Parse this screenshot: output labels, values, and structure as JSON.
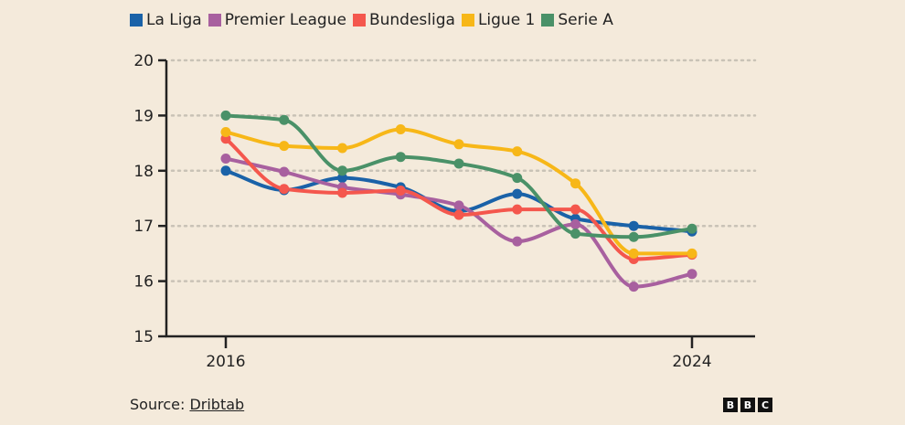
{
  "chart_data": {
    "type": "line",
    "title": "",
    "xlabel": "",
    "ylabel": "",
    "x": [
      2016,
      2017,
      2018,
      2019,
      2020,
      2021,
      2022,
      2023,
      2024
    ],
    "x_tick_labels": [
      "2016",
      "2024"
    ],
    "x_tick_values": [
      2016,
      2024
    ],
    "xlim": [
      2015,
      2025.1
    ],
    "ylim": [
      15,
      20
    ],
    "y_ticks": [
      15,
      16,
      17,
      18,
      19,
      20
    ],
    "grid": "horizontal dotted",
    "legend": "top-left",
    "series": [
      {
        "name": "La Liga",
        "color": "#1a62a8",
        "values": [
          18.0,
          17.65,
          17.87,
          17.7,
          17.27,
          17.58,
          17.13,
          17.0,
          16.9
        ]
      },
      {
        "name": "Premier League",
        "color": "#a8609f",
        "values": [
          18.22,
          17.98,
          17.7,
          17.57,
          17.37,
          16.72,
          17.03,
          15.9,
          16.13
        ]
      },
      {
        "name": "Bundesliga",
        "color": "#f4574d",
        "values": [
          18.58,
          17.67,
          17.6,
          17.64,
          17.2,
          17.3,
          17.3,
          16.4,
          16.48
        ]
      },
      {
        "name": "Ligue 1",
        "color": "#f7b718",
        "values": [
          18.7,
          18.45,
          18.41,
          18.75,
          18.48,
          18.35,
          17.77,
          16.5,
          16.5
        ]
      },
      {
        "name": "Serie A",
        "color": "#4a9168",
        "values": [
          19.0,
          18.92,
          18.0,
          18.25,
          18.13,
          17.87,
          16.86,
          16.8,
          16.95
        ]
      }
    ]
  },
  "footer": {
    "source_label": "Source: ",
    "source_link": "Dribtab",
    "logo_letters": [
      "B",
      "B",
      "C"
    ]
  }
}
